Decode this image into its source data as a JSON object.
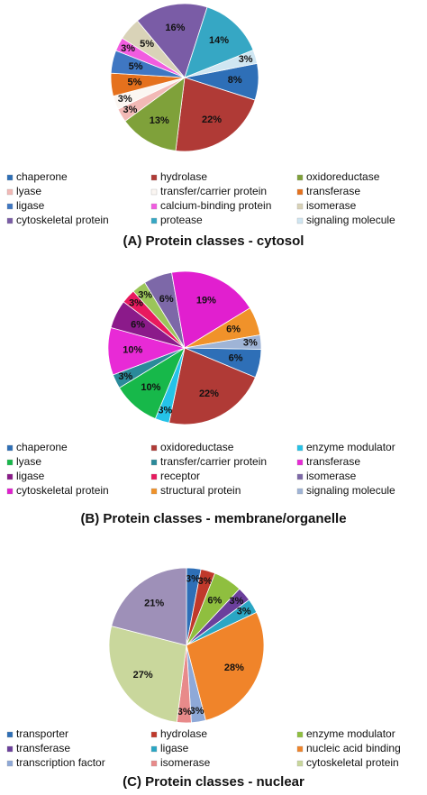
{
  "chart_data": [
    {
      "type": "pie",
      "title": "(A) Protein classes - cytosol",
      "categories": [
        "chaperone",
        "hydrolase",
        "oxidoreductase",
        "lyase",
        "transfer/carrier protein",
        "transferase",
        "ligase",
        "calcium-binding protein",
        "isomerase",
        "cytoskeletal protein",
        "protease",
        "signaling molecule"
      ],
      "values": [
        8,
        22,
        13,
        3,
        3,
        5,
        5,
        3,
        5,
        16,
        14,
        3
      ],
      "value_labels": [
        "8%",
        "22%",
        "13%",
        "3%",
        "3%",
        "5%",
        "5%",
        "3%",
        "5%",
        "16%",
        "14%",
        "3%"
      ],
      "colors": [
        "#2e6fb7",
        "#b03a36",
        "#7fa13a",
        "#f2b9b6",
        "#fbf6f2",
        "#e5711d",
        "#3f77c2",
        "#f15ce0",
        "#d9d3b8",
        "#7a5ca6",
        "#36a7c4",
        "#cfe6f2"
      ]
    },
    {
      "type": "pie",
      "title": "(B) Protein classes - membrane/organelle",
      "categories": [
        "chaperone",
        "oxidoreductase",
        "enzyme modulator",
        "lyase",
        "transfer/carrier protein",
        "transferase",
        "ligase",
        "receptor",
        null,
        "isomerase",
        "cytoskeletal protein",
        "structural protein",
        "signaling molecule"
      ],
      "values": [
        6,
        22,
        3,
        10,
        3,
        10,
        6,
        3,
        3,
        6,
        19,
        6,
        3
      ],
      "value_labels": [
        "6%",
        "22%",
        "3%",
        "10%",
        "3%",
        "10%",
        "6%",
        "3%",
        "3%",
        "6%",
        "19%",
        "6%",
        "3%"
      ],
      "colors": [
        "#2e6fb7",
        "#b03a36",
        "#25c3e8",
        "#17b84a",
        "#2a8a9a",
        "#e82ad6",
        "#8b1a8a",
        "#e8195e",
        "#9bc55a",
        "#7d68a8",
        "#e11fcf",
        "#f0922a",
        "#9fb4d6"
      ]
    },
    {
      "type": "pie",
      "title": "(C) Protein classes - nuclear",
      "categories": [
        "transporter",
        "hydrolase",
        "enzyme modulator",
        "transferase",
        "ligase",
        "nucleic acid binding",
        "transcription factor",
        "isomerase",
        "cytoskeletal protein",
        null
      ],
      "values": [
        3,
        3,
        6,
        3,
        3,
        28,
        3,
        3,
        27,
        21
      ],
      "value_labels": [
        "3%",
        "3%",
        "6%",
        "3%",
        "3%",
        "28%",
        "3%",
        "3%",
        "27%",
        "21%"
      ],
      "colors": [
        "#2e6fb7",
        "#c0392b",
        "#8fbf3f",
        "#6b3f9c",
        "#2aa6c4",
        "#f0842a",
        "#8ea9d8",
        "#e88a8a",
        "#c9d79c",
        "#9e90b8"
      ]
    }
  ]
}
